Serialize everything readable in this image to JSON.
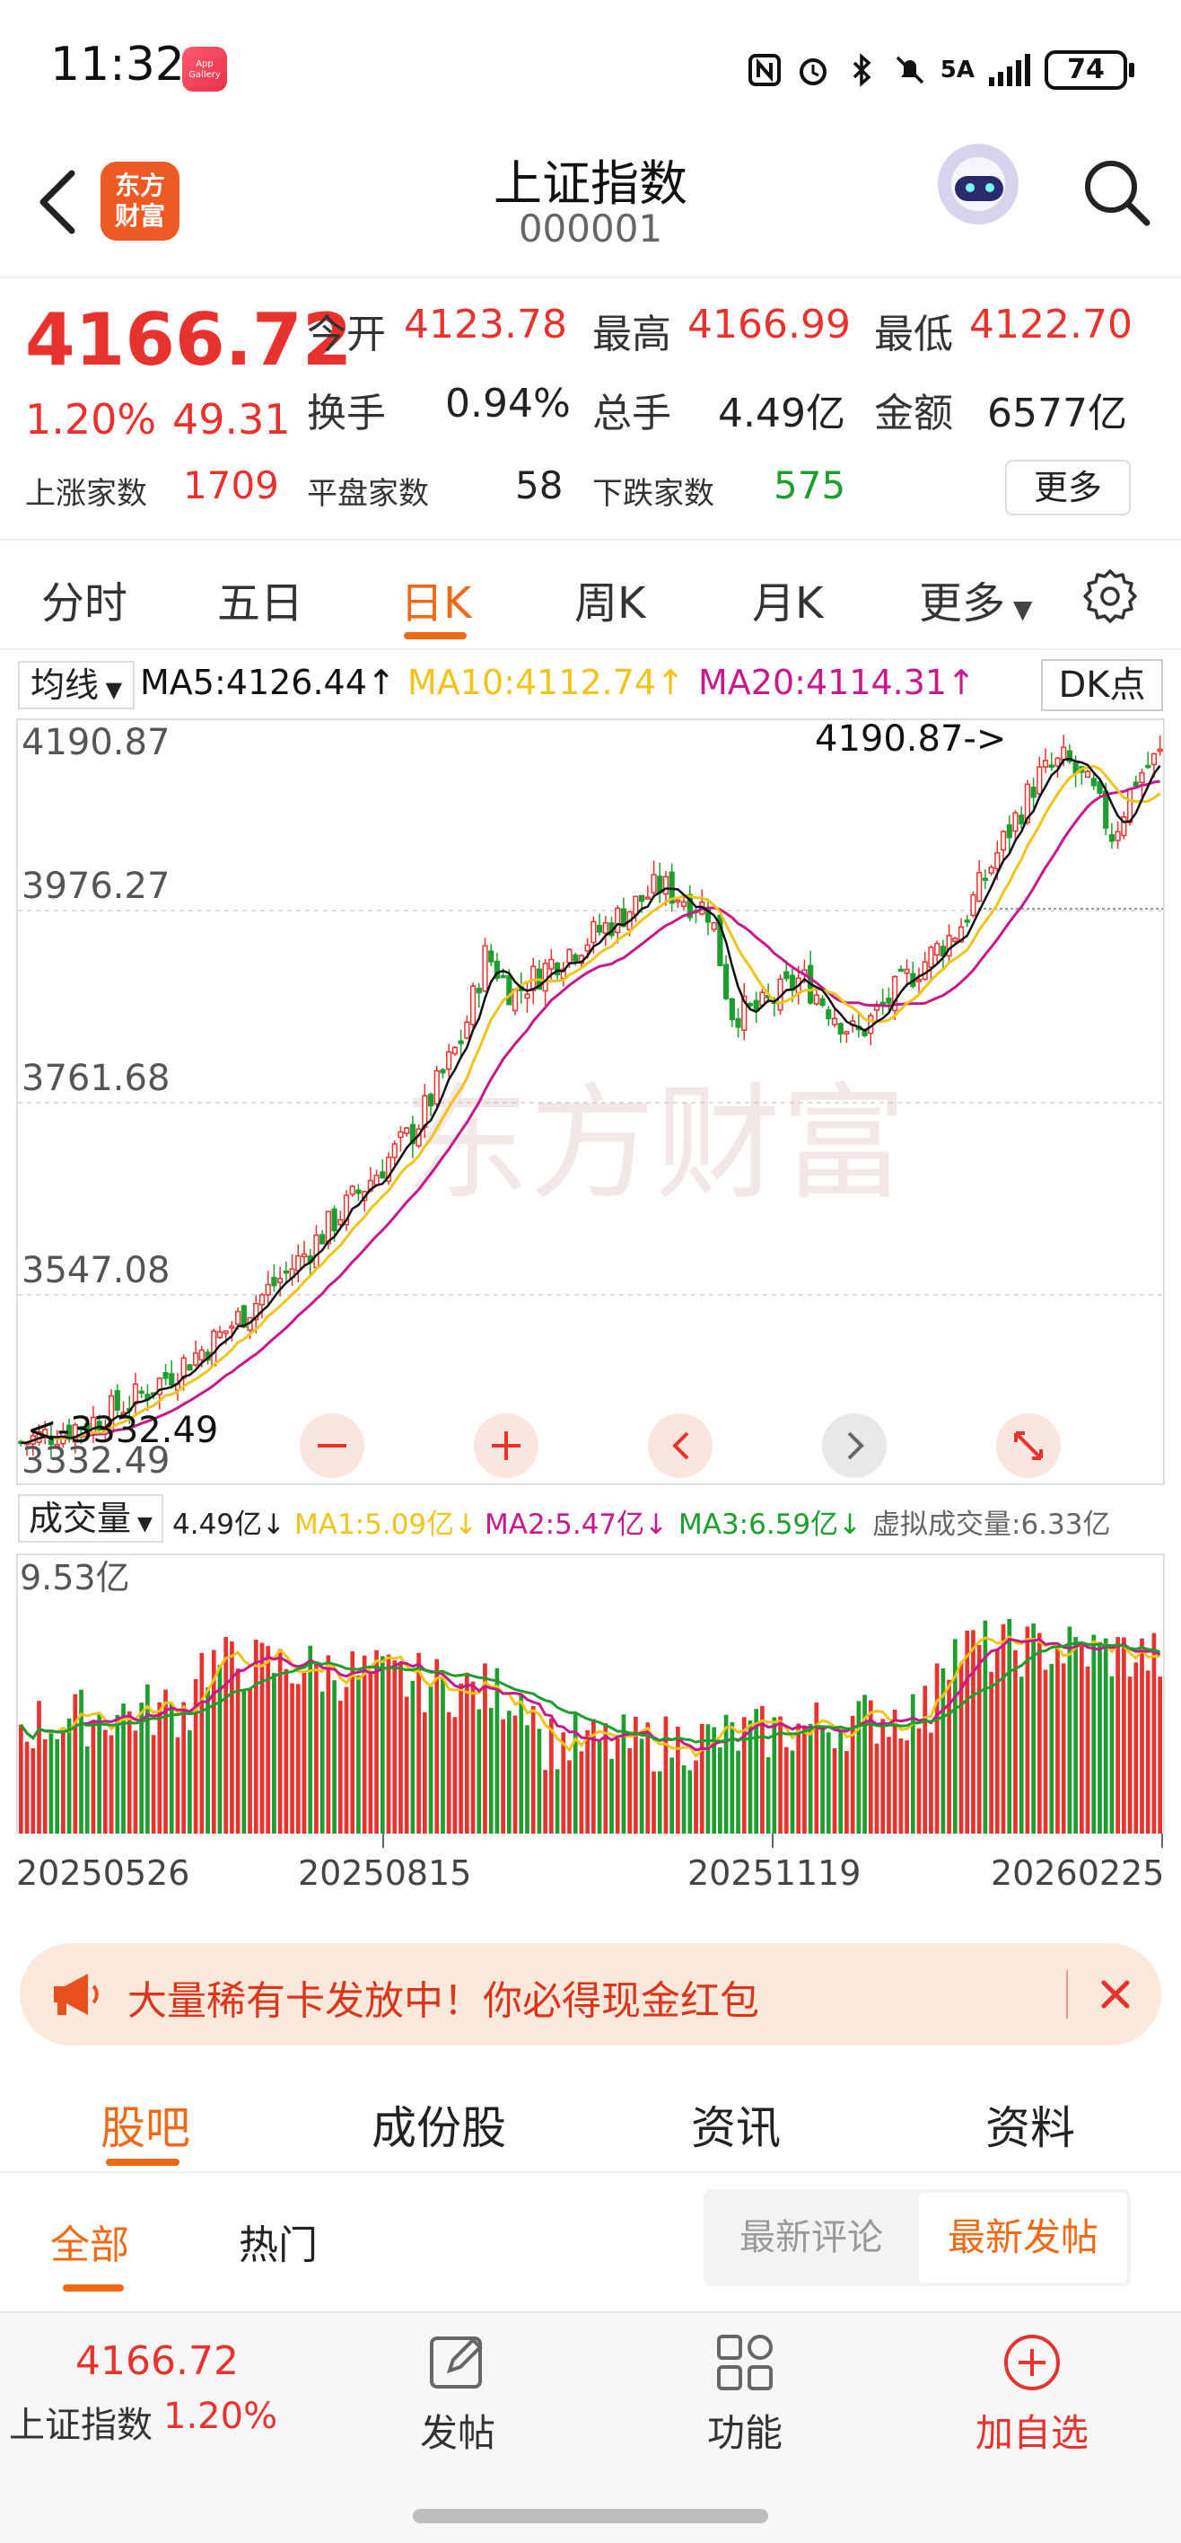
{
  "status_bar": {
    "time": "11:32",
    "app_badge": "App Gallery",
    "network": "5A",
    "battery": "74"
  },
  "header": {
    "brand": "东方财富",
    "title": "上证指数",
    "code": "000001"
  },
  "quote": {
    "price": "4166.72",
    "change_pct": "1.20%",
    "change_amt": "49.31",
    "open_label": "今开",
    "open": "4123.78",
    "high_label": "最高",
    "high": "4166.99",
    "low_label": "最低",
    "low": "4122.70",
    "turnover_label": "换手",
    "turnover": "0.94%",
    "volume_label": "总手",
    "volume": "4.49亿",
    "amount_label": "金额",
    "amount": "6577亿",
    "up_label": "上涨家数",
    "up_count": "1709",
    "flat_label": "平盘家数",
    "flat_count": "58",
    "down_label": "下跌家数",
    "down_count": "575",
    "more_label": "更多"
  },
  "period_tabs": [
    "分时",
    "五日",
    "日K",
    "周K",
    "月K",
    "更多"
  ],
  "active_period": "日K",
  "ma_legend": {
    "selector": "均线",
    "ma5": "MA5:4126.44↑",
    "ma10": "MA10:4112.74↑",
    "ma20": "MA20:4114.31↑",
    "dk": "DK点"
  },
  "kline": {
    "watermark": "东方财富",
    "axis_labels": [
      "4190.87",
      "3976.27",
      "3761.68",
      "3547.08",
      "3332.49"
    ],
    "max_annotation": "4190.87->",
    "min_annotation": "<-3332.49"
  },
  "volume_legend": {
    "selector": "成交量",
    "value": "4.49亿↓",
    "ma1": "MA1:5.09亿↓",
    "ma2": "MA2:5.47亿↓",
    "ma3": "MA3:6.59亿↓",
    "virtual": "虚拟成交量:6.33亿",
    "axis_max": "9.53亿"
  },
  "dates": [
    "20250526",
    "20250815",
    "20251119",
    "20260225"
  ],
  "promo": {
    "text": "大量稀有卡发放中！你必得现金红包"
  },
  "section_tabs": [
    "股吧",
    "成份股",
    "资讯",
    "资料"
  ],
  "sub_tabs": [
    "全部",
    "热门"
  ],
  "sort": {
    "comment": "最新评论",
    "post": "最新发帖"
  },
  "bottom_bar": {
    "price": "4166.72",
    "name": "上证指数",
    "pct": "1.20%",
    "post": "发帖",
    "functions": "功能",
    "add": "加自选"
  },
  "colors": {
    "up": "#e8322e",
    "down": "#1e9e2f",
    "accent": "#ee6a16",
    "ma5": "#111111",
    "ma10": "#f0c419",
    "ma20": "#c8198c"
  }
}
